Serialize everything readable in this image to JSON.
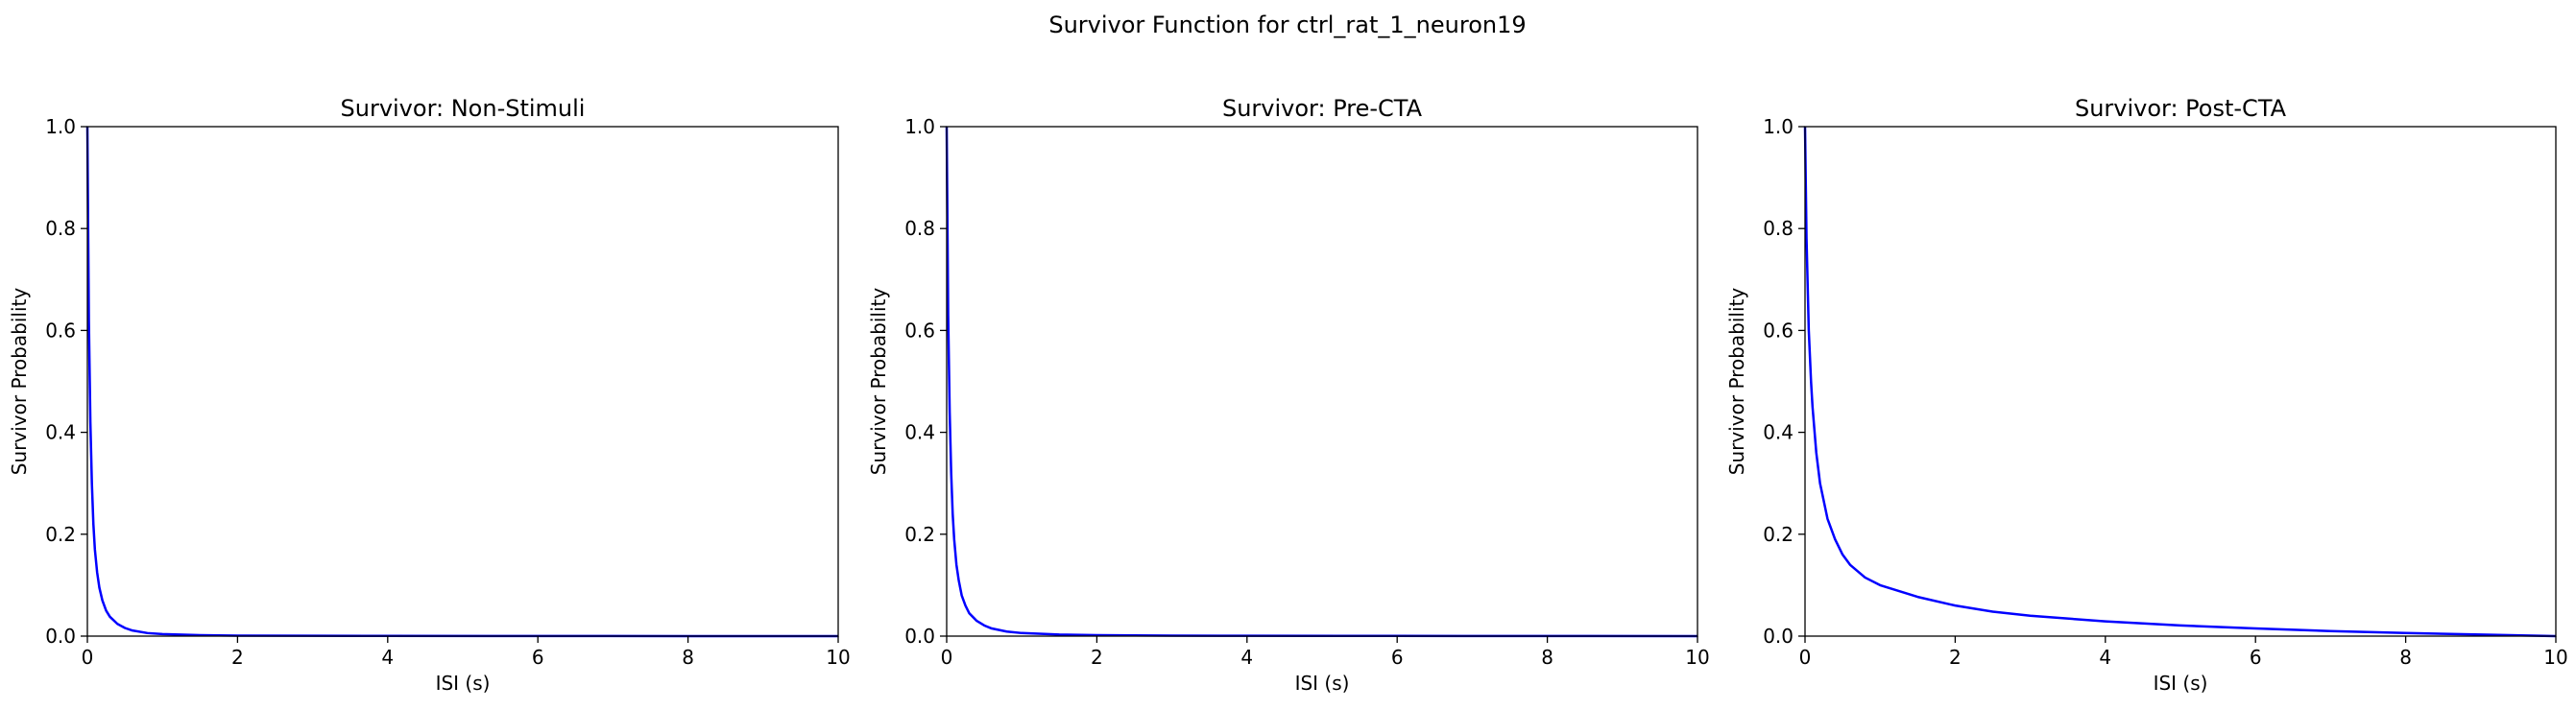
{
  "figure": {
    "suptitle": "Survivor Function for ctrl_rat_1_neuron19"
  },
  "chart_data": [
    {
      "type": "line",
      "title": "Survivor: Non-Stimuli",
      "xlabel": "ISI (s)",
      "ylabel": "Survivor Probability",
      "xlim": [
        0,
        10
      ],
      "ylim": [
        0,
        1
      ],
      "xticks": [
        "0",
        "2",
        "4",
        "6",
        "8",
        "10"
      ],
      "yticks": [
        "0.0",
        "0.2",
        "0.4",
        "0.6",
        "0.8",
        "1.0"
      ],
      "grid": false,
      "legend": "none",
      "color": "#0000ff",
      "x": [
        0,
        0.02,
        0.04,
        0.06,
        0.08,
        0.1,
        0.13,
        0.16,
        0.2,
        0.25,
        0.3,
        0.4,
        0.5,
        0.6,
        0.8,
        1.0,
        1.5,
        2.0,
        3.0,
        4.0,
        6.0,
        8.0,
        10.0
      ],
      "y": [
        1.0,
        0.62,
        0.42,
        0.3,
        0.22,
        0.17,
        0.125,
        0.095,
        0.07,
        0.05,
        0.038,
        0.024,
        0.016,
        0.011,
        0.006,
        0.004,
        0.002,
        0.001,
        0.0006,
        0.0004,
        0.0002,
        0.0001,
        0.0
      ]
    },
    {
      "type": "line",
      "title": "Survivor: Pre-CTA",
      "xlabel": "ISI (s)",
      "ylabel": "Survivor Probability",
      "xlim": [
        0,
        10
      ],
      "ylim": [
        0,
        1
      ],
      "xticks": [
        "0",
        "2",
        "4",
        "6",
        "8",
        "10"
      ],
      "yticks": [
        "0.0",
        "0.2",
        "0.4",
        "0.6",
        "0.8",
        "1.0"
      ],
      "grid": false,
      "legend": "none",
      "color": "#0000ff",
      "x": [
        0,
        0.02,
        0.04,
        0.06,
        0.08,
        0.1,
        0.13,
        0.16,
        0.2,
        0.25,
        0.3,
        0.4,
        0.5,
        0.6,
        0.8,
        1.0,
        1.5,
        2.0,
        3.0,
        4.0,
        6.0,
        8.0,
        10.0
      ],
      "y": [
        1.0,
        0.63,
        0.44,
        0.32,
        0.24,
        0.19,
        0.14,
        0.11,
        0.08,
        0.06,
        0.045,
        0.03,
        0.021,
        0.015,
        0.009,
        0.006,
        0.003,
        0.002,
        0.001,
        0.0007,
        0.0004,
        0.0002,
        0.0
      ]
    },
    {
      "type": "line",
      "title": "Survivor: Post-CTA",
      "xlabel": "ISI (s)",
      "ylabel": "Survivor Probability",
      "xlim": [
        0,
        10
      ],
      "ylim": [
        0,
        1
      ],
      "xticks": [
        "0",
        "2",
        "4",
        "6",
        "8",
        "10"
      ],
      "yticks": [
        "0.0",
        "0.2",
        "0.4",
        "0.6",
        "0.8",
        "1.0"
      ],
      "grid": false,
      "legend": "none",
      "color": "#0000ff",
      "x": [
        0,
        0.02,
        0.05,
        0.08,
        0.1,
        0.15,
        0.2,
        0.3,
        0.4,
        0.5,
        0.6,
        0.8,
        1.0,
        1.5,
        2.0,
        2.5,
        3.0,
        4.0,
        5.0,
        6.0,
        7.0,
        8.0,
        9.0,
        10.0
      ],
      "y": [
        1.0,
        0.78,
        0.6,
        0.5,
        0.45,
        0.36,
        0.3,
        0.23,
        0.19,
        0.16,
        0.14,
        0.115,
        0.1,
        0.077,
        0.06,
        0.048,
        0.04,
        0.029,
        0.021,
        0.015,
        0.01,
        0.006,
        0.003,
        0.0
      ]
    }
  ]
}
